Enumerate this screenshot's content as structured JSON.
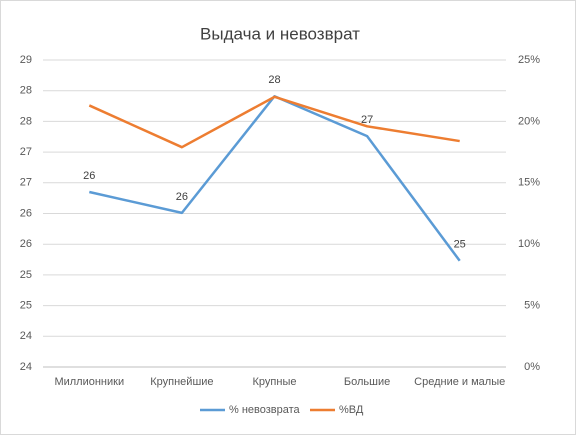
{
  "chart_data": {
    "type": "line",
    "title": "Выдача и невозврат",
    "categories": [
      "Миллионники",
      "Крупнейшие",
      "Крупные",
      "Большие",
      "Средние и малые"
    ],
    "series": [
      {
        "name": "% невозврата",
        "color": "#5b9bd5",
        "values": [
          26.35,
          26.01,
          27.91,
          27.26,
          25.23
        ],
        "value_labels": [
          "26",
          "26",
          "28",
          "27",
          "25"
        ]
      },
      {
        "name": "%ВД",
        "color": "#ed7d31",
        "axis": "y2",
        "values": [
          21.3,
          17.9,
          22.0,
          19.6,
          18.4
        ]
      }
    ],
    "ylim": [
      23.5,
      28.5
    ],
    "yticks": [
      {
        "value": 23.5,
        "label": "24"
      },
      {
        "value": 24,
        "label": "24"
      },
      {
        "value": 24.5,
        "label": "25"
      },
      {
        "value": 25,
        "label": "25"
      },
      {
        "value": 25.5,
        "label": "26"
      },
      {
        "value": 26,
        "label": "26"
      },
      {
        "value": 26.5,
        "label": "27"
      },
      {
        "value": 27,
        "label": "27"
      },
      {
        "value": 27.5,
        "label": "28"
      },
      {
        "value": 28,
        "label": "28"
      },
      {
        "value": 28.5,
        "label": "29"
      }
    ],
    "y2lim": [
      0,
      25
    ],
    "y2ticks": [
      {
        "value": 0,
        "label": "0%"
      },
      {
        "value": 5,
        "label": "5%"
      },
      {
        "value": 10,
        "label": "10%"
      },
      {
        "value": 15,
        "label": "15%"
      },
      {
        "value": 20,
        "label": "20%"
      },
      {
        "value": 25,
        "label": "25%"
      }
    ],
    "grid": true,
    "legend": "bottom"
  }
}
